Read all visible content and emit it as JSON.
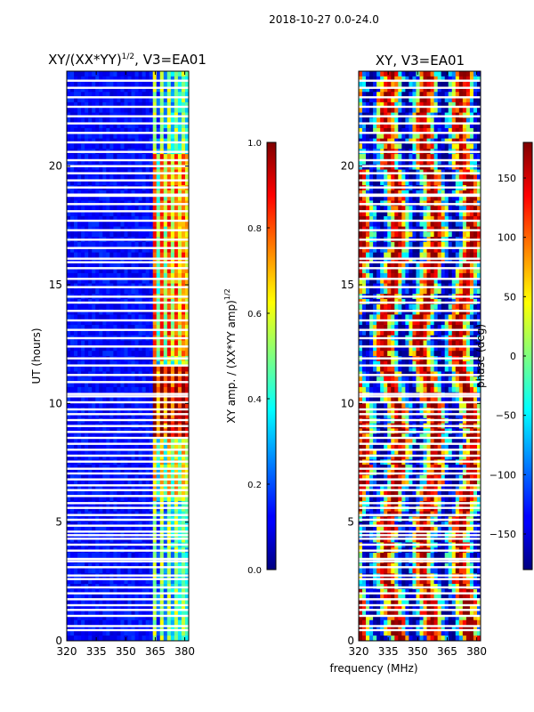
{
  "figure": {
    "suptitle": "2018-10-27 0.0-24.0",
    "shared_xlabel": "frequency (MHz)"
  },
  "chart_data": [
    {
      "type": "heatmap",
      "title_main": "XY/(XX*YY)",
      "title_exp": "1/2",
      "title_tail": ", V3=EA01",
      "ylabel": "UT (hours)",
      "xlim": [
        320,
        382
      ],
      "ylim": [
        0,
        24
      ],
      "xticks": [
        "320",
        "335",
        "350",
        "365",
        "380"
      ],
      "xtick_values": [
        320,
        335,
        350,
        365,
        380
      ],
      "yticks": [
        "0",
        "5",
        "10",
        "15",
        "20"
      ],
      "ytick_values": [
        0,
        5,
        10,
        15,
        20
      ],
      "colorbar": {
        "label_main": "XY amp. / (XX*YY amp)",
        "label_exp": "1/2",
        "range": [
          0.0,
          1.0
        ],
        "ticks": [
          "0.0",
          "0.2",
          "0.4",
          "0.6",
          "0.8",
          "1.0"
        ],
        "tick_values": [
          0.0,
          0.2,
          0.4,
          0.6,
          0.8,
          1.0
        ],
        "colormap": "jet"
      },
      "white_gaps_hours": [
        0.45,
        0.62,
        1.05,
        1.3,
        1.5,
        1.75,
        2.0,
        2.25,
        2.6,
        2.75,
        3.1,
        3.35,
        3.45,
        3.8,
        4.05,
        4.3,
        4.45,
        4.6,
        4.85,
        5.1,
        5.3,
        5.6,
        5.8,
        6.1,
        6.35,
        6.55,
        6.8,
        7.05,
        7.25,
        7.55,
        7.8,
        8.05,
        8.3,
        8.55,
        8.8,
        9.05,
        9.3,
        9.55,
        9.75,
        10.05,
        10.3,
        10.4,
        10.9,
        11.2,
        11.6,
        11.9,
        12.4,
        12.75,
        13.1,
        13.5,
        13.9,
        14.25,
        14.5,
        14.9,
        15.25,
        15.7,
        15.95,
        16.1,
        16.55,
        16.9,
        17.3,
        17.7,
        18.1,
        18.4,
        18.75,
        18.8,
        19.1,
        19.4,
        19.7,
        20.0,
        20.25,
        20.6,
        21.0,
        21.4,
        21.8,
        22.1,
        22.5,
        22.9,
        23.3,
        23.6
      ]
    },
    {
      "type": "heatmap",
      "title": "XY, V3=EA01",
      "ylabel": "",
      "xlim": [
        320,
        382
      ],
      "ylim": [
        0,
        24
      ],
      "xticks": [
        "320",
        "335",
        "350",
        "365",
        "380"
      ],
      "xtick_values": [
        320,
        335,
        350,
        365,
        380
      ],
      "yticks": [
        "0",
        "5",
        "10",
        "15",
        "20"
      ],
      "ytick_values": [
        0,
        5,
        10,
        15,
        20
      ],
      "colorbar": {
        "label": "phase (deg)",
        "range": [
          -180,
          180
        ],
        "ticks": [
          "150",
          "100",
          "50",
          "0",
          "−50",
          "−100",
          "−150"
        ],
        "tick_values": [
          150,
          100,
          50,
          0,
          -50,
          -100,
          -150
        ],
        "colormap": "jet"
      },
      "white_gaps_hours": [
        0.45,
        0.62,
        1.05,
        1.3,
        1.5,
        1.75,
        2.0,
        2.25,
        2.6,
        2.75,
        3.1,
        3.35,
        3.45,
        3.8,
        4.05,
        4.3,
        4.45,
        4.6,
        4.85,
        5.1,
        5.3,
        5.6,
        5.8,
        6.1,
        6.35,
        6.55,
        6.8,
        7.05,
        7.25,
        7.55,
        7.8,
        8.05,
        8.3,
        8.55,
        8.8,
        9.05,
        9.3,
        9.55,
        9.75,
        10.05,
        10.3,
        10.4,
        10.9,
        11.2,
        11.6,
        11.9,
        12.4,
        12.75,
        13.1,
        13.5,
        13.9,
        14.25,
        14.5,
        14.9,
        15.25,
        15.7,
        15.95,
        16.1,
        16.55,
        16.9,
        17.3,
        17.7,
        18.1,
        18.4,
        18.75,
        18.8,
        19.1,
        19.4,
        19.7,
        20.0,
        20.25,
        20.6,
        21.0,
        21.4,
        21.8,
        22.1,
        22.5,
        22.9,
        23.3,
        23.6
      ]
    }
  ]
}
